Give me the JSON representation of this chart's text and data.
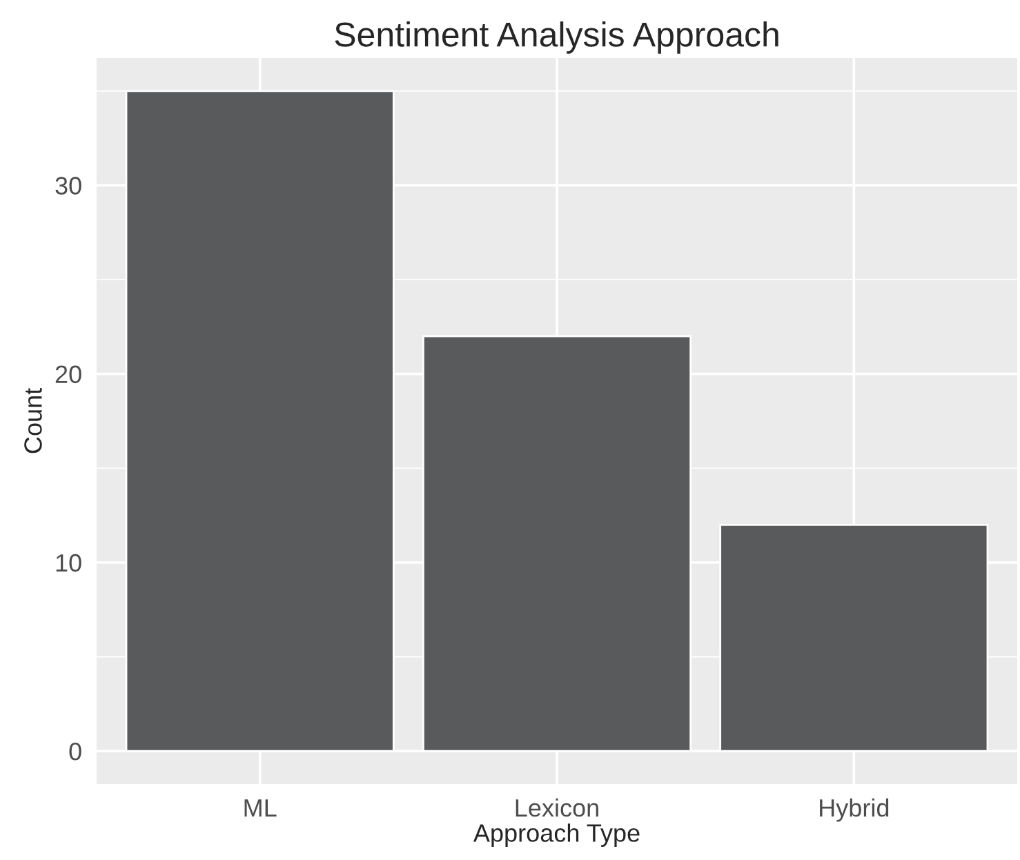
{
  "chart_data": {
    "type": "bar",
    "title": "Sentiment Analysis Approach",
    "xlabel": "Approach Type",
    "ylabel": "Count",
    "categories": [
      "ML",
      "Lexicon",
      "Hybrid"
    ],
    "values": [
      35,
      22,
      12
    ],
    "color": "#595a5c",
    "ylim": [
      -1.75,
      36.75
    ],
    "yticks": [
      0,
      10,
      20,
      30
    ],
    "grid": true
  }
}
